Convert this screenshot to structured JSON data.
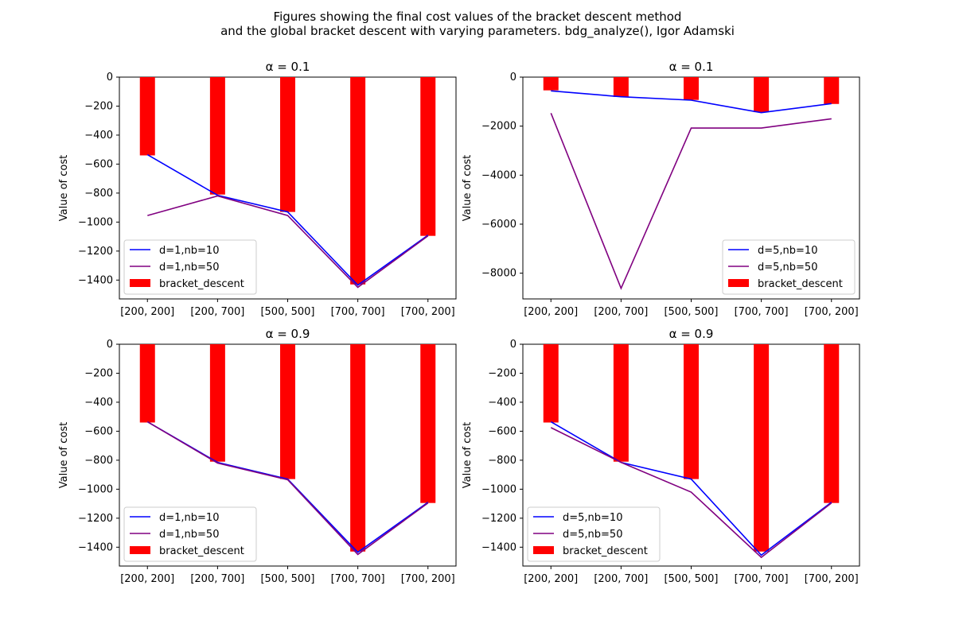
{
  "figure": {
    "title_line1": "Figures showing the final cost values of the bracket descent method",
    "title_line2": "and the global bracket descent with varying parameters. bdg_analyze(), Igor Adamski"
  },
  "chart_data": [
    {
      "type": "bar",
      "title": "α = 0.1",
      "ylabel": "Value of cost",
      "xlabel": "",
      "categories": [
        "[200, 200]",
        "[200, 700]",
        "[500, 500]",
        "[700, 700]",
        "[700, 200]"
      ],
      "ylim": [
        -1530,
        0
      ],
      "yticks": [
        0,
        -200,
        -400,
        -600,
        -800,
        -1000,
        -1200,
        -1400
      ],
      "legend_position": "lower-left",
      "bars": {
        "name": "bracket_descent",
        "color": "#ff0000",
        "values": [
          -540,
          -810,
          -930,
          -1430,
          -1095
        ]
      },
      "series": [
        {
          "name": "d=1,nb=10",
          "color": "#0000ff",
          "values": [
            -535,
            -815,
            -930,
            -1435,
            -1090
          ]
        },
        {
          "name": "d=1,nb=50",
          "color": "#800080",
          "values": [
            -955,
            -820,
            -955,
            -1450,
            -1095
          ]
        }
      ]
    },
    {
      "type": "bar",
      "title": "α = 0.1",
      "ylabel": "Value of cost",
      "xlabel": "",
      "categories": [
        "[200, 200]",
        "[200, 700]",
        "[500, 500]",
        "[700, 700]",
        "[700, 200]"
      ],
      "ylim": [
        -9050,
        0
      ],
      "yticks": [
        0,
        -2000,
        -4000,
        -6000,
        -8000
      ],
      "legend_position": "lower-right",
      "bars": {
        "name": "bracket_descent",
        "color": "#ff0000",
        "values": [
          -540,
          -810,
          -930,
          -1430,
          -1095
        ]
      },
      "series": [
        {
          "name": "d=5,nb=10",
          "color": "#0000ff",
          "values": [
            -560,
            -800,
            -940,
            -1450,
            -1080
          ]
        },
        {
          "name": "d=5,nb=50",
          "color": "#800080",
          "values": [
            -1470,
            -8620,
            -2080,
            -2080,
            -1700
          ]
        }
      ]
    },
    {
      "type": "bar",
      "title": "α = 0.9",
      "ylabel": "Value of cost",
      "xlabel": "",
      "categories": [
        "[200, 200]",
        "[200, 700]",
        "[500, 500]",
        "[700, 700]",
        "[700, 200]"
      ],
      "ylim": [
        -1530,
        0
      ],
      "yticks": [
        0,
        -200,
        -400,
        -600,
        -800,
        -1000,
        -1200,
        -1400
      ],
      "legend_position": "lower-left",
      "bars": {
        "name": "bracket_descent",
        "color": "#ff0000",
        "values": [
          -540,
          -810,
          -930,
          -1430,
          -1095
        ]
      },
      "series": [
        {
          "name": "d=1,nb=10",
          "color": "#0000ff",
          "values": [
            -535,
            -815,
            -930,
            -1435,
            -1090
          ]
        },
        {
          "name": "d=1,nb=50",
          "color": "#800080",
          "values": [
            -535,
            -820,
            -935,
            -1450,
            -1095
          ]
        }
      ]
    },
    {
      "type": "bar",
      "title": "α = 0.9",
      "ylabel": "Value of cost",
      "xlabel": "",
      "categories": [
        "[200, 200]",
        "[200, 700]",
        "[500, 500]",
        "[700, 700]",
        "[700, 200]"
      ],
      "ylim": [
        -1530,
        0
      ],
      "yticks": [
        0,
        -200,
        -400,
        -600,
        -800,
        -1000,
        -1200,
        -1400
      ],
      "legend_position": "lower-left",
      "bars": {
        "name": "bracket_descent",
        "color": "#ff0000",
        "values": [
          -540,
          -810,
          -930,
          -1430,
          -1095
        ]
      },
      "series": [
        {
          "name": "d=5,nb=10",
          "color": "#0000ff",
          "values": [
            -535,
            -815,
            -930,
            -1455,
            -1090
          ]
        },
        {
          "name": "d=5,nb=50",
          "color": "#800080",
          "values": [
            -575,
            -815,
            -1020,
            -1470,
            -1095
          ]
        }
      ]
    }
  ]
}
